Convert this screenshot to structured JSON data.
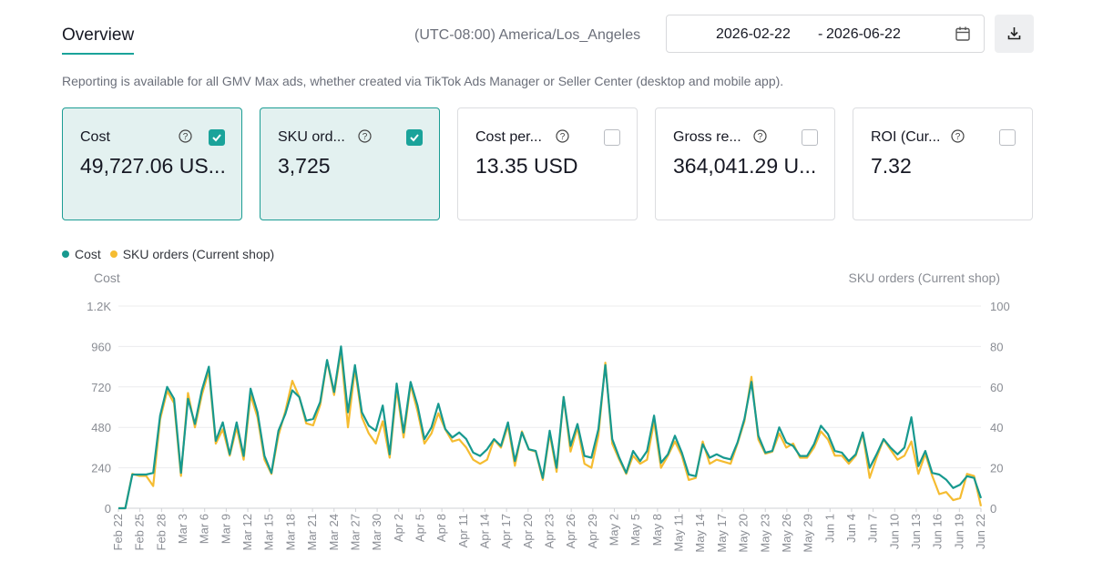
{
  "header": {
    "tab_title": "Overview",
    "timezone": "(UTC-08:00) America/Los_Angeles",
    "date_start": "2026-02-22",
    "date_separator": "-",
    "date_end": "2026-06-22",
    "calendar_icon": "calendar-icon",
    "download_icon": "download-icon"
  },
  "note": "Reporting is available for all GMV Max ads, whether created via TikTok Ads Manager or Seller Center (desktop and mobile app).",
  "colors": {
    "accent": "#1aa39a",
    "cost_line": "#17998f",
    "orders_line": "#f5bc31"
  },
  "cards": [
    {
      "label": "Cost",
      "value": "49,727.06 US...",
      "checked": true
    },
    {
      "label": "SKU ord...",
      "value": "3,725",
      "checked": true
    },
    {
      "label": "Cost per...",
      "value": "13.35 USD",
      "checked": false
    },
    {
      "label": "Gross re...",
      "value": "364,041.29 U...",
      "checked": false
    },
    {
      "label": "ROI (Cur...",
      "value": "7.32",
      "checked": false
    }
  ],
  "chart_data": {
    "type": "line",
    "legend": [
      "Cost",
      "SKU orders (Current shop)"
    ],
    "legend_position": "top-left",
    "ylabel_left": "Cost",
    "ylabel_right": "SKU orders (Current shop)",
    "ylim_left": [
      0,
      1200
    ],
    "ylim_right": [
      0,
      100
    ],
    "yticks_left": [
      "0",
      "240",
      "480",
      "720",
      "960",
      "1.2K"
    ],
    "yticks_right": [
      "0",
      "20",
      "40",
      "60",
      "80",
      "100"
    ],
    "grid": true,
    "x_tick_labels": [
      "Feb 22",
      "Feb 25",
      "Feb 28",
      "Mar 3",
      "Mar 6",
      "Mar 9",
      "Mar 12",
      "Mar 15",
      "Mar 18",
      "Mar 21",
      "Mar 24",
      "Mar 27",
      "Mar 30",
      "Apr 2",
      "Apr 5",
      "Apr 8",
      "Apr 11",
      "Apr 14",
      "Apr 17",
      "Apr 20",
      "Apr 23",
      "Apr 26",
      "Apr 29",
      "May 2",
      "May 5",
      "May 8",
      "May 11",
      "May 14",
      "May 17",
      "May 20",
      "May 23",
      "May 26",
      "May 29",
      "Jun 1",
      "Jun 4",
      "Jun 7",
      "Jun 10",
      "Jun 13",
      "Jun 16",
      "Jun 19",
      "Jun 22"
    ],
    "series": [
      {
        "name": "Cost",
        "axis": "left",
        "values": [
          0,
          0,
          200,
          200,
          200,
          210,
          550,
          720,
          650,
          210,
          650,
          500,
          700,
          840,
          400,
          510,
          320,
          510,
          310,
          710,
          570,
          310,
          210,
          460,
          560,
          700,
          660,
          520,
          530,
          630,
          880,
          690,
          960,
          570,
          850,
          570,
          490,
          460,
          610,
          320,
          740,
          450,
          750,
          610,
          410,
          480,
          620,
          470,
          420,
          450,
          410,
          330,
          310,
          350,
          410,
          370,
          510,
          280,
          450,
          350,
          340,
          180,
          460,
          240,
          660,
          370,
          500,
          310,
          300,
          470,
          850,
          410,
          300,
          210,
          340,
          280,
          340,
          550,
          270,
          320,
          430,
          330,
          200,
          190,
          380,
          300,
          320,
          300,
          290,
          390,
          530,
          750,
          430,
          330,
          340,
          480,
          390,
          370,
          310,
          310,
          380,
          490,
          440,
          340,
          330,
          280,
          320,
          450,
          240,
          320,
          410,
          360,
          320,
          360,
          540,
          250,
          340,
          210,
          200,
          170,
          120,
          140,
          190,
          180,
          60
        ]
      },
      {
        "name": "SKU orders (Current shop)",
        "axis": "right",
        "values": [
          0,
          0,
          17,
          16,
          16,
          11,
          44,
          58,
          52,
          16,
          57,
          40,
          56,
          68,
          32,
          39,
          26,
          40,
          24,
          56,
          45,
          24,
          17,
          36,
          48,
          63,
          55,
          42,
          41,
          51,
          73,
          56,
          78,
          40,
          69,
          45,
          37,
          32,
          43,
          25,
          59,
          35,
          61,
          48,
          32,
          37,
          47,
          39,
          33,
          34,
          30,
          24,
          22,
          24,
          34,
          30,
          41,
          21,
          38,
          29,
          28,
          14,
          37,
          18,
          55,
          28,
          40,
          22,
          20,
          36,
          72,
          32,
          24,
          17,
          26,
          22,
          24,
          43,
          20,
          26,
          33,
          26,
          14,
          15,
          33,
          22,
          24,
          23,
          22,
          32,
          43,
          65,
          34,
          27,
          28,
          37,
          30,
          32,
          25,
          25,
          30,
          38,
          34,
          26,
          26,
          22,
          26,
          37,
          15,
          25,
          34,
          29,
          24,
          26,
          33,
          17,
          27,
          16,
          7,
          8,
          4,
          5,
          17,
          16,
          1
        ]
      }
    ]
  }
}
